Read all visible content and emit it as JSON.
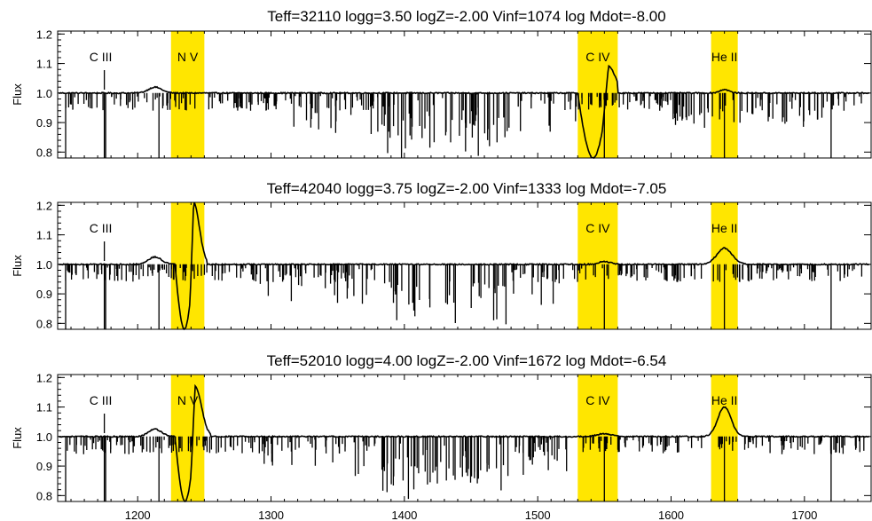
{
  "chart_data": [
    {
      "type": "line",
      "title": "Teff=32110 logg=3.50  logZ=-2.00 Vinf=1074  log Mdot=-8.00",
      "ylabel": "Flux",
      "xlim": [
        1140,
        1750
      ],
      "ylim": [
        0.78,
        1.21
      ],
      "yticks": [
        0.8,
        0.9,
        1.0,
        1.1,
        1.2
      ],
      "ytick_labels": [
        "0.8",
        "0.9",
        "1.0",
        "1.1",
        "1.2"
      ],
      "bands": [
        {
          "label": "N V",
          "x0": 1225,
          "x1": 1250,
          "color": "#ffe600"
        },
        {
          "label": "C IV",
          "x0": 1530,
          "x1": 1560,
          "color": "#ffe600"
        },
        {
          "label": "He II",
          "x0": 1630,
          "x1": 1650,
          "color": "#ffe600"
        }
      ],
      "annotations": [
        {
          "label": "C III",
          "x": 1175,
          "marker": true
        }
      ],
      "features": [
        {
          "kind": "bump",
          "x": 1213,
          "y": 1.02,
          "w": 7
        },
        {
          "kind": "pcygni",
          "x0": 1530,
          "x1": 1560,
          "absorption": 0.78,
          "emission": 1.09,
          "peak": 1553
        },
        {
          "kind": "bump",
          "x": 1640,
          "y": 1.012,
          "w": 5
        }
      ]
    },
    {
      "type": "line",
      "title": "Teff=42040 logg=3.75  logZ=-2.00 Vinf=1333  log Mdot=-7.05",
      "ylabel": "Flux",
      "xlim": [
        1140,
        1750
      ],
      "ylim": [
        0.78,
        1.21
      ],
      "yticks": [
        0.8,
        0.9,
        1.0,
        1.1,
        1.2
      ],
      "ytick_labels": [
        "0.8",
        "0.9",
        "1.0",
        "1.1",
        "1.2"
      ],
      "bands": [
        {
          "label": "",
          "x0": 1225,
          "x1": 1250,
          "color": "#ffe600"
        },
        {
          "label": "C IV",
          "x0": 1530,
          "x1": 1560,
          "color": "#ffe600"
        },
        {
          "label": "He II",
          "x0": 1630,
          "x1": 1650,
          "color": "#ffe600"
        }
      ],
      "annotations": [
        {
          "label": "C III",
          "x": 1175,
          "marker": true
        }
      ],
      "features": [
        {
          "kind": "bump",
          "x": 1213,
          "y": 1.025,
          "w": 7
        },
        {
          "kind": "pcygni",
          "x0": 1228,
          "x1": 1252,
          "absorption": 0.78,
          "emission": 1.21,
          "peak": 1242
        },
        {
          "kind": "bump",
          "x": 1550,
          "y": 1.01,
          "w": 6
        },
        {
          "kind": "bump",
          "x": 1640,
          "y": 1.055,
          "w": 8
        }
      ]
    },
    {
      "type": "line",
      "title": "Teff=52010 logg=4.00  logZ=-2.00 Vinf=1672  log Mdot=-6.54",
      "ylabel": "Flux",
      "xlim": [
        1140,
        1750
      ],
      "ylim": [
        0.78,
        1.21
      ],
      "yticks": [
        0.8,
        0.9,
        1.0,
        1.1,
        1.2
      ],
      "ytick_labels": [
        "0.8",
        "0.9",
        "1.0",
        "1.1",
        "1.2"
      ],
      "xticks": [
        1200,
        1300,
        1400,
        1500,
        1600,
        1700
      ],
      "xtick_labels": [
        "1200",
        "1300",
        "1400",
        "1500",
        "1600",
        "1700"
      ],
      "bands": [
        {
          "label": "N V",
          "x0": 1225,
          "x1": 1250,
          "color": "#ffe600"
        },
        {
          "label": "C IV",
          "x0": 1530,
          "x1": 1560,
          "color": "#ffe600"
        },
        {
          "label": "He II",
          "x0": 1630,
          "x1": 1650,
          "color": "#ffe600"
        }
      ],
      "annotations": [
        {
          "label": "C III",
          "x": 1175,
          "marker": true
        }
      ],
      "features": [
        {
          "kind": "bump",
          "x": 1213,
          "y": 1.025,
          "w": 7
        },
        {
          "kind": "pcygni",
          "x0": 1228,
          "x1": 1255,
          "absorption": 0.78,
          "emission": 1.17,
          "peak": 1243
        },
        {
          "kind": "bump",
          "x": 1550,
          "y": 1.01,
          "w": 7
        },
        {
          "kind": "bump",
          "x": 1640,
          "y": 1.1,
          "w": 7
        }
      ]
    }
  ]
}
